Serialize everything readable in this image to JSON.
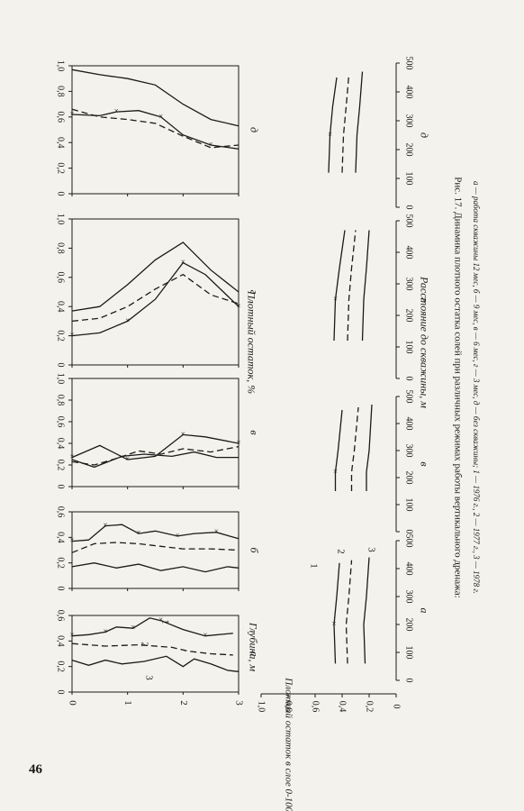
{
  "page_number": "46",
  "caption": {
    "title": "Рис. 17. Динамика плотного остатка солей при различных режимах работы вертикального дренажа:",
    "legend": "а — работа скважины 12 мес, б — 9 мес, в — 6 мес, г — 3 мес, д — без скважины; 1 — 1976 г., 2 — 1977 г., 3 — 1978 г."
  },
  "axis_labels": {
    "depth": "Глубина, м",
    "residue": "Плотный остаток, %",
    "layer_residue": "Плотный остаток в слое 0-100см, %",
    "distance": "Расстояние до скважины, м"
  },
  "panel_letters": [
    "а",
    "б",
    "в",
    "г",
    "д"
  ],
  "curve_numbers": [
    "1",
    "2",
    "3"
  ],
  "chart_data": [
    {
      "type": "line",
      "panel": "а",
      "x_name": "depth_m",
      "xlim": [
        0,
        3
      ],
      "ylim": [
        0,
        0.6
      ],
      "x_ticks": [
        "0",
        "1",
        "2",
        "3"
      ],
      "y_ticks": [
        "0",
        "0,2",
        "0,4",
        "0,6"
      ],
      "series": [
        {
          "name": "1",
          "style": "solid",
          "markers": true,
          "x": [
            0,
            0.3,
            0.6,
            0.8,
            1.1,
            1.4,
            1.6,
            2.0,
            2.4,
            2.9
          ],
          "y": [
            0.44,
            0.45,
            0.47,
            0.51,
            0.5,
            0.58,
            0.56,
            0.49,
            0.44,
            0.46
          ]
        },
        {
          "name": "2",
          "style": "dashed",
          "markers": false,
          "x": [
            0,
            0.6,
            1.2,
            1.8,
            2.1,
            2.5,
            2.9
          ],
          "y": [
            0.38,
            0.36,
            0.37,
            0.35,
            0.32,
            0.3,
            0.29
          ]
        },
        {
          "name": "3",
          "style": "solid",
          "markers": false,
          "x": [
            0,
            0.3,
            0.6,
            0.9,
            1.3,
            1.7,
            2.0,
            2.2,
            2.5,
            2.8,
            3.0
          ],
          "y": [
            0.25,
            0.21,
            0.25,
            0.22,
            0.24,
            0.28,
            0.2,
            0.26,
            0.22,
            0.17,
            0.16
          ]
        }
      ]
    },
    {
      "type": "line",
      "panel": "б",
      "x_name": "depth_m",
      "xlim": [
        0,
        3
      ],
      "ylim": [
        0,
        0.6
      ],
      "x_ticks": [
        "0",
        "1",
        "2",
        "3"
      ],
      "y_ticks": [
        "0",
        "0,2",
        "0,4",
        "0,6"
      ],
      "series": [
        {
          "name": "1",
          "style": "solid",
          "markers": true,
          "x": [
            0,
            0.3,
            0.6,
            0.9,
            1.2,
            1.5,
            1.9,
            2.2,
            2.6,
            3.0
          ],
          "y": [
            0.37,
            0.38,
            0.49,
            0.5,
            0.43,
            0.45,
            0.41,
            0.43,
            0.44,
            0.39
          ]
        },
        {
          "name": "2",
          "style": "dashed",
          "markers": false,
          "x": [
            0,
            0.4,
            0.8,
            1.2,
            1.6,
            2.0,
            2.5,
            3.0
          ],
          "y": [
            0.28,
            0.35,
            0.36,
            0.35,
            0.33,
            0.31,
            0.31,
            0.3
          ]
        },
        {
          "name": "3",
          "style": "solid",
          "markers": false,
          "x": [
            0,
            0.4,
            0.8,
            1.2,
            1.6,
            2.0,
            2.4,
            2.8,
            3.0
          ],
          "y": [
            0.17,
            0.2,
            0.16,
            0.19,
            0.14,
            0.17,
            0.13,
            0.17,
            0.16
          ]
        }
      ]
    },
    {
      "type": "line",
      "panel": "в",
      "x_name": "depth_m",
      "xlim": [
        0,
        3
      ],
      "ylim": [
        0,
        1.0
      ],
      "x_ticks": [
        "0",
        "1",
        "2",
        "3"
      ],
      "y_ticks": [
        "0",
        "0,2",
        "0,4",
        "0,6",
        "0,8",
        "1,0"
      ],
      "series": [
        {
          "name": "1",
          "style": "solid",
          "markers": true,
          "x": [
            0,
            0.5,
            1.0,
            1.5,
            2.0,
            2.4,
            3.0
          ],
          "y": [
            0.27,
            0.38,
            0.25,
            0.28,
            0.48,
            0.46,
            0.4
          ]
        },
        {
          "name": "2",
          "style": "dashed",
          "markers": false,
          "x": [
            0,
            0.4,
            0.8,
            1.2,
            1.6,
            2.0,
            2.5,
            3.0
          ],
          "y": [
            0.23,
            0.2,
            0.26,
            0.33,
            0.3,
            0.35,
            0.32,
            0.37
          ]
        },
        {
          "name": "3",
          "style": "solid",
          "markers": false,
          "x": [
            0,
            0.4,
            0.9,
            1.3,
            1.8,
            2.2,
            2.6,
            3.0
          ],
          "y": [
            0.25,
            0.18,
            0.28,
            0.3,
            0.28,
            0.32,
            0.27,
            0.27
          ]
        }
      ]
    },
    {
      "type": "line",
      "panel": "г",
      "x_name": "depth_m",
      "xlim": [
        0,
        3
      ],
      "ylim": [
        0,
        1.0
      ],
      "x_ticks": [
        "0",
        "1",
        "2",
        "3"
      ],
      "y_ticks": [
        "0",
        "0,2",
        "0,4",
        "0,6",
        "0,8",
        "1,0"
      ],
      "series": [
        {
          "name": "1",
          "style": "solid",
          "markers": true,
          "x": [
            0,
            0.5,
            1.0,
            1.5,
            2.0,
            2.4,
            3.0
          ],
          "y": [
            0.2,
            0.22,
            0.3,
            0.45,
            0.7,
            0.62,
            0.4
          ]
        },
        {
          "name": "2",
          "style": "dashed",
          "markers": false,
          "x": [
            0,
            0.5,
            1.0,
            1.5,
            2.0,
            2.5,
            3.0
          ],
          "y": [
            0.3,
            0.32,
            0.4,
            0.52,
            0.62,
            0.48,
            0.42
          ]
        },
        {
          "name": "3",
          "style": "solid",
          "markers": false,
          "x": [
            0,
            0.5,
            1.0,
            1.5,
            2.0,
            2.5,
            3.0
          ],
          "y": [
            0.37,
            0.4,
            0.55,
            0.72,
            0.84,
            0.65,
            0.5
          ]
        }
      ]
    },
    {
      "type": "line",
      "panel": "д",
      "x_name": "depth_m",
      "xlim": [
        0,
        3
      ],
      "ylim": [
        0,
        1.0
      ],
      "x_ticks": [
        "0",
        "1",
        "2",
        "3"
      ],
      "y_ticks": [
        "0",
        "0,2",
        "0,4",
        "0,6",
        "0,8",
        "1,0"
      ],
      "series": [
        {
          "name": "1",
          "style": "solid",
          "markers": true,
          "x": [
            0,
            0.5,
            0.8,
            1.2,
            1.6,
            2.0,
            2.5,
            3.0
          ],
          "y": [
            0.62,
            0.61,
            0.64,
            0.65,
            0.6,
            0.46,
            0.38,
            0.35
          ]
        },
        {
          "name": "2",
          "style": "dashed",
          "markers": false,
          "x": [
            0,
            0.5,
            1.0,
            1.5,
            2.0,
            2.5,
            3.0
          ],
          "y": [
            0.66,
            0.6,
            0.58,
            0.55,
            0.45,
            0.36,
            0.38
          ]
        },
        {
          "name": "3",
          "style": "solid",
          "markers": false,
          "x": [
            0,
            0.5,
            1.0,
            1.5,
            2.0,
            2.5,
            3.0
          ],
          "y": [
            0.97,
            0.93,
            0.9,
            0.85,
            0.7,
            0.58,
            0.53
          ]
        }
      ]
    },
    {
      "type": "line",
      "panel": "а",
      "x_name": "distance_m",
      "xlim": [
        0,
        500
      ],
      "ylim": [
        0,
        1.0
      ],
      "x_ticks": [
        "0",
        "100",
        "200",
        "300",
        "400",
        "500"
      ],
      "y_ticks": [
        "0",
        "0,2",
        "0,4",
        "0,6",
        "0,8",
        "1,0"
      ],
      "series": [
        {
          "name": "1",
          "style": "solid",
          "markers": true,
          "x": [
            60,
            200,
            300,
            420
          ],
          "y": [
            0.45,
            0.46,
            0.44,
            0.42
          ]
        },
        {
          "name": "2",
          "style": "dashed",
          "markers": false,
          "x": [
            60,
            200,
            300,
            430
          ],
          "y": [
            0.36,
            0.37,
            0.35,
            0.33
          ]
        },
        {
          "name": "3",
          "style": "solid",
          "markers": false,
          "x": [
            60,
            200,
            300,
            440
          ],
          "y": [
            0.23,
            0.24,
            0.22,
            0.2
          ]
        }
      ]
    },
    {
      "type": "line",
      "panel": "в",
      "x_name": "distance_m",
      "xlim": [
        0,
        500
      ],
      "ylim": [
        0,
        1.0
      ],
      "x_ticks": [
        "0",
        "100",
        "200",
        "300",
        "400",
        "500"
      ],
      "series": [
        {
          "name": "1",
          "style": "solid",
          "markers": true,
          "x": [
            150,
            220,
            300,
            450
          ],
          "y": [
            0.45,
            0.45,
            0.43,
            0.4
          ]
        },
        {
          "name": "2",
          "style": "dashed",
          "markers": false,
          "x": [
            150,
            220,
            300,
            460
          ],
          "y": [
            0.33,
            0.33,
            0.31,
            0.28
          ]
        },
        {
          "name": "3",
          "style": "solid",
          "markers": false,
          "x": [
            150,
            220,
            300,
            470
          ],
          "y": [
            0.22,
            0.22,
            0.2,
            0.18
          ]
        }
      ]
    },
    {
      "type": "line",
      "panel": "г",
      "x_name": "distance_m",
      "xlim": [
        0,
        500
      ],
      "ylim": [
        0,
        1.0
      ],
      "x_ticks": [
        "0",
        "100",
        "200",
        "300",
        "400",
        "500"
      ],
      "series": [
        {
          "name": "1",
          "style": "solid",
          "markers": true,
          "x": [
            120,
            250,
            350,
            470
          ],
          "y": [
            0.46,
            0.45,
            0.42,
            0.38
          ]
        },
        {
          "name": "2",
          "style": "dashed",
          "markers": false,
          "x": [
            120,
            250,
            350,
            470
          ],
          "y": [
            0.36,
            0.35,
            0.33,
            0.3
          ]
        },
        {
          "name": "3",
          "style": "solid",
          "markers": false,
          "x": [
            120,
            250,
            350,
            470
          ],
          "y": [
            0.25,
            0.24,
            0.22,
            0.2
          ]
        }
      ]
    },
    {
      "type": "line",
      "panel": "д",
      "x_name": "distance_m",
      "xlim": [
        0,
        500
      ],
      "ylim": [
        0,
        1.0
      ],
      "x_ticks": [
        "0",
        "100",
        "200",
        "300",
        "400",
        "500"
      ],
      "series": [
        {
          "name": "1",
          "style": "solid",
          "markers": true,
          "x": [
            120,
            250,
            350,
            450
          ],
          "y": [
            0.5,
            0.49,
            0.47,
            0.44
          ]
        },
        {
          "name": "2",
          "style": "dashed",
          "markers": false,
          "x": [
            120,
            250,
            350,
            460
          ],
          "y": [
            0.4,
            0.39,
            0.37,
            0.35
          ]
        },
        {
          "name": "3",
          "style": "solid",
          "markers": false,
          "x": [
            120,
            250,
            350,
            470
          ],
          "y": [
            0.3,
            0.29,
            0.27,
            0.25
          ]
        }
      ]
    }
  ]
}
